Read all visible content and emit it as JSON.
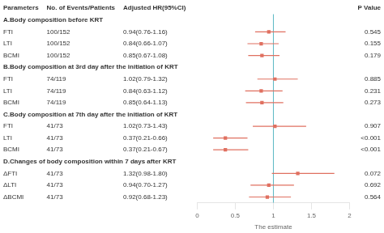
{
  "chart_data": {
    "type": "forest",
    "headers": [
      "Parameters",
      "No. of Events/Patients",
      "Adjusted HR(95%CI)",
      "P Value"
    ],
    "sections": [
      {
        "title": "A.Body composition before KRT",
        "rows": [
          {
            "label": "FTI",
            "events": "100/152",
            "hr_text": "0.94(0.76-1.16)",
            "hr": 0.94,
            "lo": 0.76,
            "hi": 1.16,
            "pval": "0.545"
          },
          {
            "label": "LTI",
            "events": "100/152",
            "hr_text": "0.84(0.66-1.07)",
            "hr": 0.84,
            "lo": 0.66,
            "hi": 1.07,
            "pval": "0.155"
          },
          {
            "label": "BCMI",
            "events": "100/152",
            "hr_text": "0.85(0.67-1.08)",
            "hr": 0.85,
            "lo": 0.67,
            "hi": 1.08,
            "pval": "0.179"
          }
        ]
      },
      {
        "title": "B.Body composition at 3rd day after the initiation of KRT",
        "rows": [
          {
            "label": "FTI",
            "events": "74/119",
            "hr_text": "1.02(0.79-1.32)",
            "hr": 1.02,
            "lo": 0.79,
            "hi": 1.32,
            "pval": "0.885"
          },
          {
            "label": "LTI",
            "events": "74/119",
            "hr_text": "0.84(0.63-1.12)",
            "hr": 0.84,
            "lo": 0.63,
            "hi": 1.12,
            "pval": "0.231"
          },
          {
            "label": "BCMI",
            "events": "74/119",
            "hr_text": "0.85(0.64-1.13)",
            "hr": 0.85,
            "lo": 0.64,
            "hi": 1.13,
            "pval": "0.273"
          }
        ]
      },
      {
        "title": "C.Body composition at 7th day after the initiation of KRT",
        "rows": [
          {
            "label": "FTI",
            "events": "41/73",
            "hr_text": "1.02(0.73-1.43)",
            "hr": 1.02,
            "lo": 0.73,
            "hi": 1.43,
            "pval": "0.907"
          },
          {
            "label": "LTI",
            "events": "41/73",
            "hr_text": "0.37(0.21-0.66)",
            "hr": 0.37,
            "lo": 0.21,
            "hi": 0.66,
            "pval": "<0.001"
          },
          {
            "label": "BCMI",
            "events": "41/73",
            "hr_text": "0.37(0.21-0.67)",
            "hr": 0.37,
            "lo": 0.21,
            "hi": 0.67,
            "pval": "<0.001"
          }
        ]
      },
      {
        "title": "D.Changes of body composition within 7 days after KRT",
        "rows": [
          {
            "label": "ΔFTI",
            "events": "41/73",
            "hr_text": "1.32(0.98-1.80)",
            "hr": 1.32,
            "lo": 0.98,
            "hi": 1.8,
            "pval": "0.072"
          },
          {
            "label": "ΔLTI",
            "events": "41/73",
            "hr_text": "0.94(0.70-1.27)",
            "hr": 0.94,
            "lo": 0.7,
            "hi": 1.27,
            "pval": "0.692"
          },
          {
            "label": "ΔBCMI",
            "events": "41/73",
            "hr_text": "0.92(0.68-1.23)",
            "hr": 0.92,
            "lo": 0.68,
            "hi": 1.23,
            "pval": "0.564"
          }
        ]
      }
    ],
    "xlabel": "The estimate",
    "xlim": [
      0,
      2
    ],
    "xticks": [
      0,
      0.5,
      1,
      1.5,
      2
    ],
    "ref_line": {
      "x": 1.0,
      "color": "#5bb8c4"
    },
    "color": "#e07060",
    "marker": "square",
    "grid": false
  }
}
